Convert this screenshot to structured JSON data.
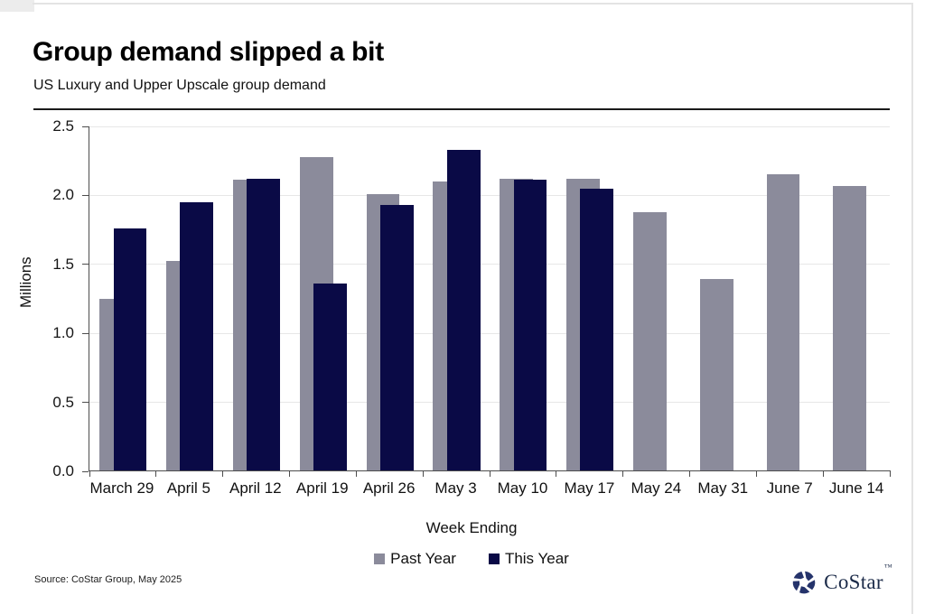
{
  "page": {
    "title": "Group demand slipped a bit",
    "subtitle": "US Luxury and Upper Upscale group demand",
    "source": "Source: CoStar Group, May 2025",
    "logo": {
      "text": "CoStar",
      "tm": "™",
      "icon": "costar-pinwheel-icon",
      "color": "#25336b"
    }
  },
  "chart_data": {
    "type": "bar",
    "title": "Group demand slipped a bit",
    "subtitle": "US Luxury and Upper Upscale group demand",
    "xlabel": "Week Ending",
    "ylabel": "Millions",
    "ylim": [
      0,
      2.5
    ],
    "ytick_step": 0.5,
    "ytick_labels": [
      "0.0",
      "0.5",
      "1.0",
      "1.5",
      "2.0",
      "2.5"
    ],
    "grid": true,
    "legend_position": "bottom",
    "bar_style": {
      "group_overlap": true,
      "series_on_top": "This Year"
    },
    "categories": [
      "March 29",
      "April 5",
      "April 12",
      "April 19",
      "April 26",
      "May 3",
      "May 10",
      "May 17",
      "May 24",
      "May 31",
      "June 7",
      "June 14"
    ],
    "series": [
      {
        "name": "Past Year",
        "color": "#8b8b9b",
        "values": [
          1.25,
          1.52,
          2.11,
          2.28,
          2.01,
          2.1,
          2.12,
          2.12,
          1.88,
          1.39,
          2.15,
          2.07
        ]
      },
      {
        "name": "This Year",
        "color": "#0a0a46",
        "values": [
          1.76,
          1.95,
          2.12,
          1.36,
          1.93,
          2.33,
          2.11,
          2.05,
          null,
          null,
          null,
          null
        ]
      }
    ]
  }
}
